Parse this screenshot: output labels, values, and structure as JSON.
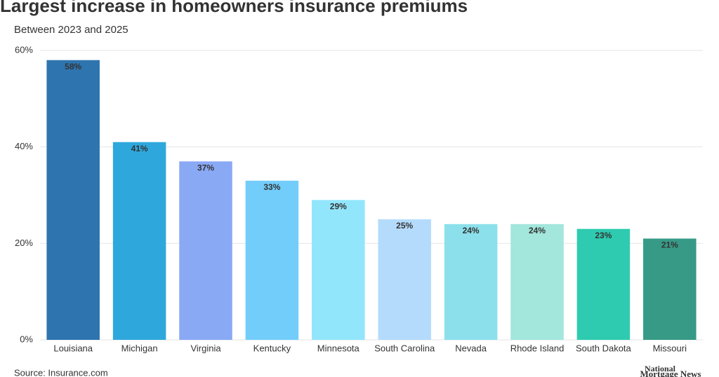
{
  "chart_data": {
    "type": "bar",
    "title": "Largest increase in homeowners insurance premiums",
    "subtitle": "Between 2023 and 2025",
    "categories": [
      "Louisiana",
      "Michigan",
      "Virginia",
      "Kentucky",
      "Minnesota",
      "South Carolina",
      "Nevada",
      "Rhode Island",
      "South Dakota",
      "Missouri"
    ],
    "values": [
      58,
      41,
      37,
      33,
      29,
      25,
      24,
      24,
      23,
      21
    ],
    "value_labels": [
      "58%",
      "41%",
      "37%",
      "33%",
      "29%",
      "25%",
      "24%",
      "24%",
      "23%",
      "21%"
    ],
    "colors": [
      "#2e75b0",
      "#2ea8dc",
      "#8aa9f5",
      "#72cdfb",
      "#92e6fc",
      "#b5dbfc",
      "#8ce0ec",
      "#a2e6dc",
      "#2ecbb0",
      "#379a86"
    ],
    "ylim": [
      0,
      60
    ],
    "yticks": [
      {
        "value": 0,
        "label": "0%"
      },
      {
        "value": 20,
        "label": "20%"
      },
      {
        "value": 40,
        "label": "40%"
      },
      {
        "value": 60,
        "label": "60%"
      }
    ],
    "grid": true,
    "source": "Source: Insurance.com",
    "logo": [
      "National",
      "Mortgage News"
    ]
  }
}
